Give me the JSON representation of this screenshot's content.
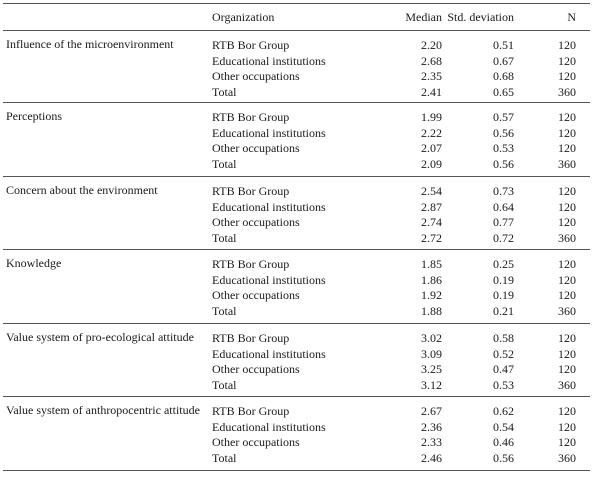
{
  "table": {
    "headers": {
      "organization": "Organization",
      "median": "Median",
      "std": "Std. deviation",
      "n": "N"
    },
    "groups": [
      {
        "variable": "Influence of the microenvironment",
        "rows": [
          {
            "org": "RTB Bor Group",
            "median": "2.20",
            "std": "0.51",
            "n": "120"
          },
          {
            "org": "Educational institutions",
            "median": "2.68",
            "std": "0.67",
            "n": "120"
          },
          {
            "org": "Other occupations",
            "median": "2.35",
            "std": "0.68",
            "n": "120"
          },
          {
            "org": "Total",
            "median": "2.41",
            "std": "0.65",
            "n": "360"
          }
        ]
      },
      {
        "variable": "Perceptions",
        "rows": [
          {
            "org": "RTB Bor Group",
            "median": "1.99",
            "std": "0.57",
            "n": "120"
          },
          {
            "org": "Educational institutions",
            "median": "2.22",
            "std": "0.56",
            "n": "120"
          },
          {
            "org": "Other occupations",
            "median": "2.07",
            "std": "0.53",
            "n": "120"
          },
          {
            "org": "Total",
            "median": "2.09",
            "std": "0.56",
            "n": "360"
          }
        ]
      },
      {
        "variable": "Concern about the environment",
        "rows": [
          {
            "org": "RTB Bor Group",
            "median": "2.54",
            "std": "0.73",
            "n": "120"
          },
          {
            "org": "Educational institutions",
            "median": "2.87",
            "std": "0.64",
            "n": "120"
          },
          {
            "org": "Other occupations",
            "median": "2.74",
            "std": "0.77",
            "n": "120"
          },
          {
            "org": "Total",
            "median": "2.72",
            "std": "0.72",
            "n": "360"
          }
        ]
      },
      {
        "variable": "Knowledge",
        "rows": [
          {
            "org": "RTB Bor Group",
            "median": "1.85",
            "std": "0.25",
            "n": "120"
          },
          {
            "org": "Educational institutions",
            "median": "1.86",
            "std": "0.19",
            "n": "120"
          },
          {
            "org": "Other occupations",
            "median": "1.92",
            "std": "0.19",
            "n": "120"
          },
          {
            "org": "Total",
            "median": "1.88",
            "std": "0.21",
            "n": "360"
          }
        ]
      },
      {
        "variable": "Value system of pro-ecological attitude",
        "rows": [
          {
            "org": "RTB Bor Group",
            "median": "3.02",
            "std": "0.58",
            "n": "120"
          },
          {
            "org": "Educational institutions",
            "median": "3.09",
            "std": "0.52",
            "n": "120"
          },
          {
            "org": "Other occupations",
            "median": "3.25",
            "std": "0.47",
            "n": "120"
          },
          {
            "org": "Total",
            "median": "3.12",
            "std": "0.53",
            "n": "360"
          }
        ]
      },
      {
        "variable": "Value system of anthropocentric attitude",
        "rows": [
          {
            "org": "RTB Bor Group",
            "median": "2.67",
            "std": "0.62",
            "n": "120"
          },
          {
            "org": "Educational institutions",
            "median": "2.36",
            "std": "0.54",
            "n": "120"
          },
          {
            "org": "Other occupations",
            "median": "2.33",
            "std": "0.46",
            "n": "120"
          },
          {
            "org": "Total",
            "median": "2.46",
            "std": "0.56",
            "n": "360"
          }
        ]
      }
    ]
  }
}
